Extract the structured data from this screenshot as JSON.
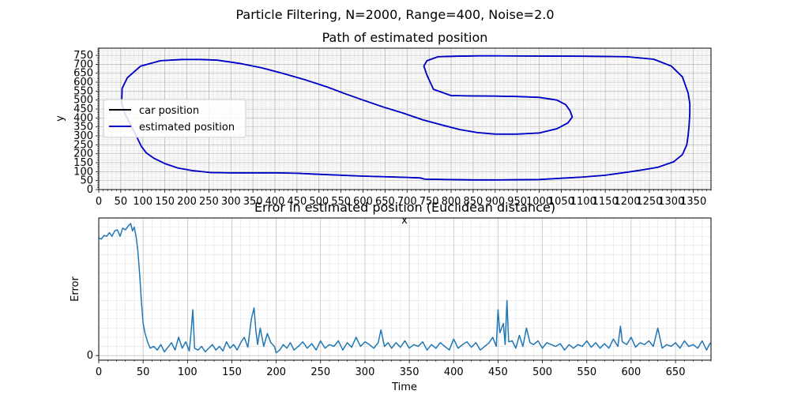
{
  "suptitle": "Particle Filtering, N=2000, Range=400, Noise=2.0",
  "colors": {
    "car": "#000000",
    "estimate": "#0000cc",
    "error": "#1f77b4",
    "grid_major": "#b0b0b0",
    "grid_minor": "#e2e2e2"
  },
  "chart_data": [
    {
      "type": "line",
      "title": "Path of estimated position",
      "xlabel": "x",
      "ylabel": "y",
      "xlim": [
        0,
        1390
      ],
      "ylim": [
        0,
        790
      ],
      "grid": true,
      "legend_position": "center-left",
      "xticks": [
        0,
        50,
        100,
        150,
        200,
        250,
        300,
        350,
        400,
        450,
        500,
        550,
        600,
        650,
        700,
        750,
        800,
        850,
        900,
        950,
        1000,
        1050,
        1100,
        1150,
        1200,
        1250,
        1300,
        1350
      ],
      "yticks": [
        0,
        50,
        100,
        150,
        200,
        250,
        300,
        350,
        400,
        450,
        500,
        550,
        600,
        650,
        700,
        750
      ],
      "series": [
        {
          "name": "car position",
          "x": [
            340,
            300,
            255,
            215,
            180,
            150,
            125,
            108,
            97,
            88,
            75,
            60,
            52,
            53,
            65,
            95,
            140,
            190,
            230,
            270,
            320,
            370,
            420,
            470,
            520,
            560,
            600,
            645,
            690,
            735,
            780,
            820,
            860,
            900,
            950,
            1000,
            1040,
            1065,
            1075,
            1070,
            1060,
            1040,
            1000,
            950,
            900,
            850,
            800,
            760,
            745,
            738,
            745,
            770,
            810,
            860,
            900,
            1000,
            1100,
            1200,
            1260,
            1300,
            1325,
            1338,
            1342,
            1342,
            1341,
            1340,
            1338,
            1335,
            1325,
            1305,
            1270,
            1230,
            1200,
            1150,
            1100,
            1000,
            900,
            850,
            740,
            730,
            700,
            600,
            500,
            450,
            400,
            340
          ],
          "y": [
            93,
            93,
            95,
            105,
            120,
            145,
            175,
            205,
            240,
            285,
            350,
            420,
            480,
            565,
            625,
            690,
            720,
            727,
            727,
            723,
            705,
            680,
            648,
            612,
            572,
            535,
            500,
            462,
            428,
            390,
            360,
            335,
            318,
            310,
            310,
            316,
            340,
            372,
            405,
            440,
            475,
            500,
            515,
            520,
            522,
            523,
            525,
            560,
            640,
            690,
            720,
            742,
            745,
            747,
            747,
            746,
            745,
            742,
            728,
            690,
            630,
            540,
            480,
            430,
            390,
            350,
            300,
            250,
            195,
            155,
            125,
            108,
            97,
            80,
            70,
            56,
            54,
            54,
            58,
            65,
            68,
            75,
            85,
            91,
            93,
            93
          ]
        },
        {
          "name": "estimated position",
          "x": [
            340,
            300,
            255,
            215,
            180,
            150,
            125,
            108,
            97,
            88,
            75,
            60,
            52,
            53,
            65,
            95,
            140,
            190,
            230,
            270,
            320,
            370,
            420,
            470,
            520,
            560,
            600,
            645,
            690,
            735,
            780,
            820,
            860,
            900,
            950,
            1000,
            1040,
            1065,
            1075,
            1070,
            1060,
            1040,
            1000,
            950,
            900,
            850,
            800,
            760,
            745,
            738,
            745,
            770,
            810,
            860,
            900,
            1000,
            1100,
            1200,
            1260,
            1300,
            1325,
            1338,
            1342,
            1342,
            1341,
            1340,
            1338,
            1335,
            1325,
            1305,
            1270,
            1230,
            1200,
            1150,
            1100,
            1000,
            900,
            850,
            740,
            730,
            700,
            600,
            500,
            450,
            400,
            340
          ],
          "y": [
            93,
            93,
            95,
            105,
            120,
            145,
            175,
            205,
            240,
            285,
            350,
            420,
            480,
            565,
            625,
            690,
            720,
            727,
            727,
            723,
            705,
            680,
            648,
            612,
            572,
            535,
            500,
            462,
            428,
            390,
            360,
            335,
            318,
            310,
            310,
            316,
            340,
            372,
            405,
            440,
            475,
            500,
            515,
            520,
            522,
            523,
            525,
            560,
            640,
            690,
            720,
            742,
            745,
            747,
            747,
            746,
            745,
            742,
            728,
            690,
            630,
            540,
            480,
            430,
            390,
            350,
            300,
            250,
            195,
            155,
            125,
            108,
            97,
            80,
            70,
            56,
            54,
            54,
            58,
            65,
            68,
            75,
            85,
            91,
            93,
            93
          ]
        }
      ]
    },
    {
      "type": "line",
      "title": "Error in estimated position (Euclidean distance)",
      "xlabel": "Time",
      "ylabel": "Error",
      "xlim": [
        0,
        690
      ],
      "ylim": [
        -5,
        150
      ],
      "grid": true,
      "xticks": [
        0,
        50,
        100,
        150,
        200,
        250,
        300,
        350,
        400,
        450,
        500,
        550,
        600,
        650
      ],
      "yticks": [
        0
      ],
      "series": [
        {
          "name": "",
          "x": [
            0,
            3,
            6,
            9,
            12,
            15,
            18,
            21,
            24,
            27,
            30,
            33,
            36,
            38,
            40,
            42,
            44,
            46,
            48,
            50,
            52,
            55,
            58,
            62,
            66,
            70,
            74,
            78,
            82,
            86,
            90,
            94,
            98,
            102,
            104,
            106,
            108,
            112,
            116,
            120,
            124,
            128,
            132,
            136,
            140,
            144,
            148,
            152,
            156,
            160,
            164,
            168,
            172,
            175,
            177,
            179,
            182,
            186,
            190,
            194,
            198,
            200,
            204,
            208,
            212,
            216,
            220,
            225,
            230,
            235,
            240,
            245,
            250,
            255,
            260,
            265,
            270,
            275,
            280,
            285,
            290,
            295,
            300,
            305,
            310,
            315,
            318,
            322,
            326,
            330,
            335,
            340,
            345,
            350,
            355,
            360,
            365,
            370,
            375,
            380,
            385,
            390,
            395,
            400,
            405,
            410,
            415,
            420,
            425,
            430,
            435,
            440,
            444,
            448,
            450,
            452,
            456,
            458,
            460,
            462,
            466,
            470,
            474,
            478,
            482,
            486,
            490,
            495,
            500,
            505,
            510,
            515,
            520,
            525,
            530,
            535,
            540,
            545,
            550,
            555,
            560,
            565,
            570,
            575,
            580,
            585,
            588,
            590,
            595,
            600,
            605,
            610,
            615,
            620,
            625,
            630,
            635,
            640,
            645,
            650,
            655,
            660,
            665,
            670,
            675,
            680,
            685,
            688,
            690
          ],
          "y": [
            128,
            127,
            131,
            130,
            134,
            130,
            136,
            137,
            130,
            139,
            137,
            141,
            144,
            136,
            140,
            130,
            115,
            90,
            60,
            35,
            25,
            15,
            8,
            10,
            6,
            12,
            4,
            9,
            14,
            6,
            20,
            8,
            15,
            5,
            25,
            50,
            8,
            6,
            10,
            4,
            8,
            12,
            6,
            10,
            5,
            15,
            8,
            12,
            6,
            14,
            20,
            9,
            40,
            52,
            28,
            12,
            30,
            10,
            24,
            14,
            10,
            3,
            6,
            12,
            8,
            14,
            6,
            10,
            15,
            8,
            13,
            6,
            16,
            8,
            12,
            10,
            16,
            6,
            14,
            9,
            20,
            10,
            15,
            12,
            8,
            14,
            28,
            10,
            14,
            8,
            14,
            9,
            16,
            8,
            12,
            10,
            15,
            6,
            12,
            8,
            14,
            10,
            6,
            18,
            8,
            12,
            15,
            9,
            14,
            6,
            10,
            14,
            20,
            10,
            50,
            25,
            35,
            12,
            60,
            15,
            16,
            8,
            22,
            10,
            30,
            14,
            12,
            16,
            8,
            14,
            12,
            10,
            13,
            6,
            12,
            8,
            12,
            10,
            16,
            9,
            14,
            8,
            13,
            8,
            18,
            10,
            32,
            15,
            12,
            20,
            9,
            14,
            12,
            16,
            10,
            30,
            8,
            12,
            10,
            14,
            8,
            16,
            10,
            12,
            8,
            16,
            6,
            12,
            14
          ]
        }
      ]
    }
  ]
}
